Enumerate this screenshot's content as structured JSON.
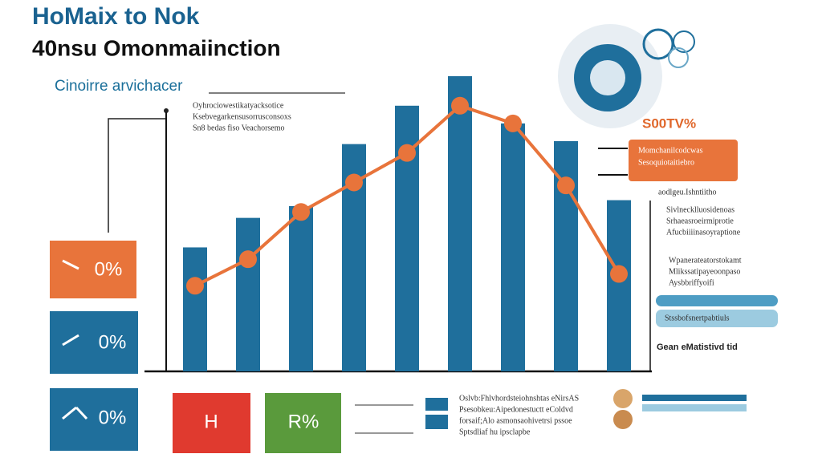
{
  "header": {
    "title": "HoMaix to Nok",
    "subtitle": "40nsu Omonmaiinction",
    "section": "Cinoirre arvichacer",
    "note": [
      "Oyhrociowestikatyacksotice",
      "Ksebvegarkensusorrusconsoxs",
      "Sn8 bedas fiso Veachorsemo"
    ]
  },
  "chart_data": {
    "type": "bar",
    "categories": [
      null,
      null,
      null,
      null,
      null,
      null,
      null,
      null,
      null
    ],
    "series": [
      {
        "type": "bar",
        "color": "#1f6f9c",
        "values": [
          42,
          52,
          56,
          77,
          90,
          100,
          84,
          78,
          58
        ]
      },
      {
        "type": "line",
        "color": "#e8743b",
        "values": [
          29,
          38,
          54,
          64,
          74,
          90,
          84,
          63,
          33
        ]
      }
    ]
  },
  "left_stats": [
    {
      "label": "0%",
      "color": "#e8743b"
    },
    {
      "label": "0%",
      "color": "#1f6f9c"
    },
    {
      "label": "0%",
      "color": "#1f6f9c"
    }
  ],
  "bottom_stats": [
    {
      "label": "H",
      "color": "#e03a2f"
    },
    {
      "label": "R%",
      "color": "#5a9a3c"
    }
  ],
  "right": {
    "headline": "S00TV%",
    "banner": [
      "Momchanilcodcwas",
      "Sesoquiotaitiebro"
    ],
    "lines": [
      "aodlgeu.Ishntiitho",
      "Sivlnecklluosidenoas",
      "Srhaeasroeirmiprotie",
      "Afucbiiiinasoyraptione",
      "Wpanerateatorstokamt",
      "Mlikssatipayeoonpaso",
      "Aysbbriffyoifi",
      "Stssbofsnertpabtiuls"
    ],
    "footer": "Gean eMatistivd tid"
  },
  "bottom_note": [
    "Oslvb:Fhlvhordsteiohnshtas eNirsAS",
    "Psesobkeu:Aipedonestuctt eColdvd",
    "forsaif;Alo asmonsaohivetrsi pssoe",
    "Sptsdliaf hu ipsclapbe"
  ]
}
